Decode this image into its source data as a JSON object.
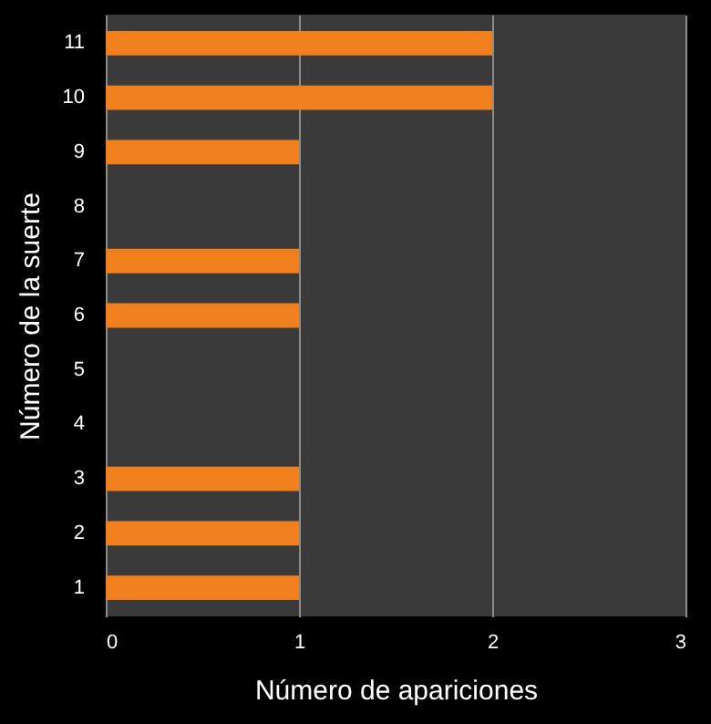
{
  "chart_data": {
    "type": "bar",
    "orientation": "horizontal",
    "xlabel": "Número de apariciones",
    "ylabel": "Número de la suerte",
    "categories": [
      "11",
      "10",
      "9",
      "8",
      "7",
      "6",
      "5",
      "4",
      "3",
      "2",
      "1"
    ],
    "values": [
      2,
      2,
      1,
      0,
      1,
      1,
      0,
      0,
      1,
      1,
      1
    ],
    "color": "#f07f1e",
    "xlim": [
      0,
      3
    ],
    "xticks": [
      0,
      1,
      2,
      3
    ],
    "grid": "x"
  }
}
